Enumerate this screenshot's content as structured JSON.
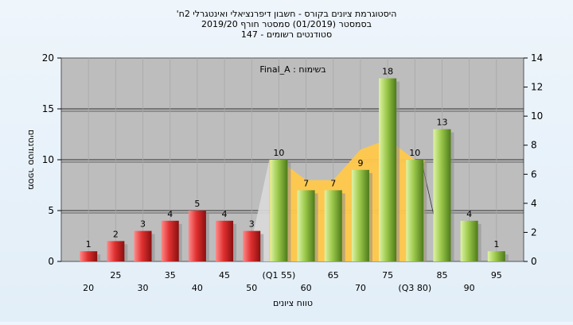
{
  "chart_data": {
    "type": "bar",
    "title_lines": [
      "'היסטוגרמת ציונים בקורס - חשבון דיפרנציאלי ואינטגרלי 2ח",
      "בסמסטר  (01/2019)  סמסטר חורף 2019/20",
      "147 - סטודנטים רשומים"
    ],
    "inner_label": "Final_A : בשימוח",
    "xlabel": "טווח ציונים",
    "ylabel": "מספר סטודנטים",
    "ylim": [
      0,
      20
    ],
    "yticks": [
      0,
      5,
      10,
      15,
      20
    ],
    "y2lim": [
      0,
      14
    ],
    "y2ticks": [
      0,
      2,
      4,
      6,
      8,
      10,
      12,
      14
    ],
    "categories": [
      "20",
      "25",
      "30",
      "35",
      "40",
      "45",
      "50",
      "(Q1 55)",
      "60",
      "65",
      "70",
      "75",
      "(Q3 80)",
      "85",
      "90",
      "95"
    ],
    "values": [
      1,
      2,
      3,
      4,
      5,
      4,
      3,
      10,
      7,
      7,
      9,
      18,
      10,
      13,
      4,
      1
    ],
    "bar_colors": [
      "red",
      "red",
      "red",
      "red",
      "red",
      "red",
      "red",
      "green",
      "green",
      "green",
      "green",
      "green",
      "green",
      "green",
      "green",
      "green"
    ],
    "area_band": {
      "start_index": 7,
      "end_index": 12,
      "values": [
        10,
        8,
        8,
        11,
        12,
        10
      ]
    },
    "colors": {
      "red_bar": "#d42a2a",
      "green_bar": "#8dbb3f",
      "band": "#ffc84a",
      "plot_bg": "#bdbdbd"
    },
    "grid": true
  }
}
